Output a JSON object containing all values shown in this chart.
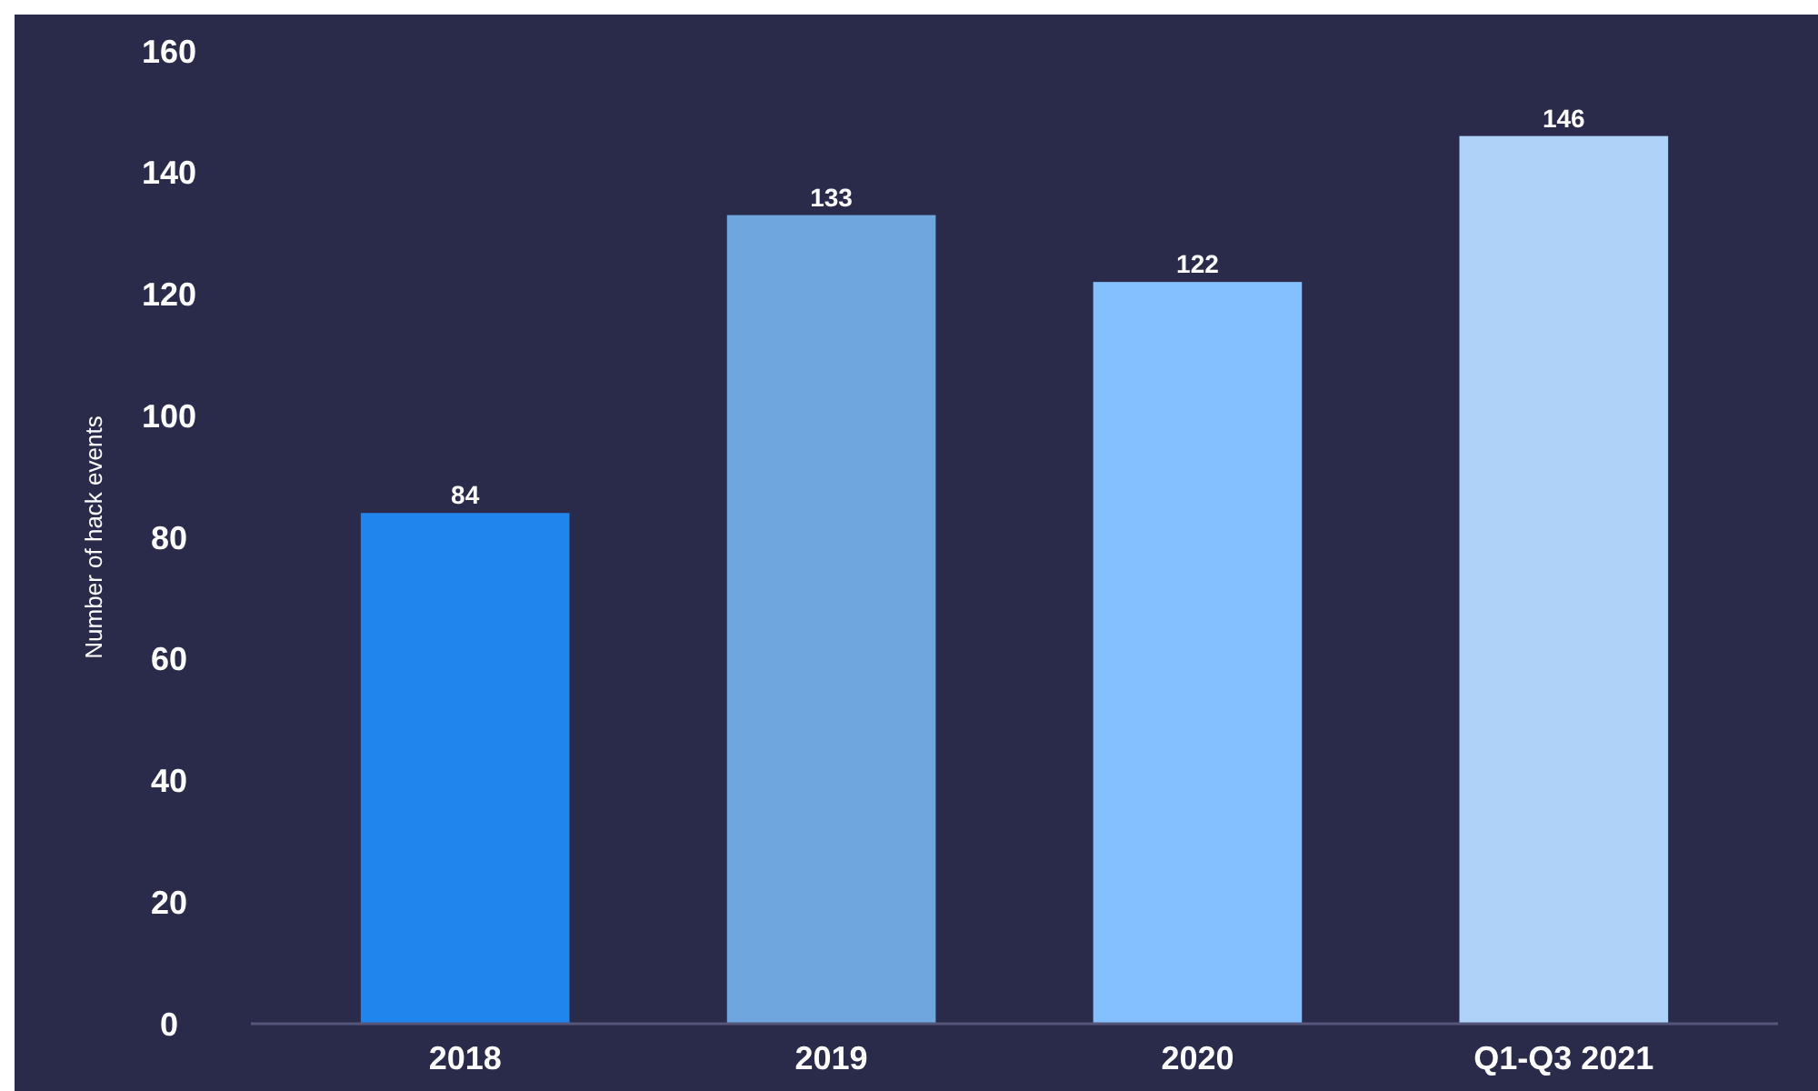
{
  "chart_data": {
    "type": "bar",
    "ylabel": "Number of hack events",
    "categories": [
      "2018",
      "2019",
      "2020",
      "Q1-Q3 2021"
    ],
    "values": [
      84,
      133,
      122,
      146
    ],
    "colors": [
      "#2185ee",
      "#6fa6de",
      "#84bfff",
      "#afd3f8"
    ],
    "ylim": [
      0,
      160
    ],
    "yticks": [
      0,
      20,
      40,
      60,
      80,
      100,
      120,
      140,
      160
    ],
    "data_labels": true,
    "grid": false
  }
}
